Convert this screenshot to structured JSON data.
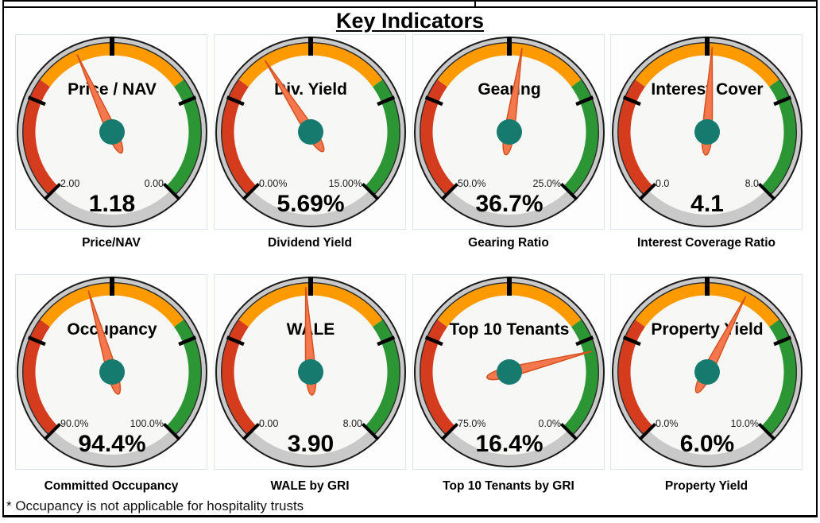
{
  "title": "Key Indicators",
  "footnote": "* Occupancy is not applicable for hospitality trusts",
  "colors": {
    "band_red": "#D53C1E",
    "band_orange": "#FC9A00",
    "band_green": "#2D9634",
    "band_edge": "#2B2B2B",
    "ring_silver": "#C9C9C9",
    "outline": "#1A1A1A",
    "face": "#F7F7F5",
    "needle_fill": "#F4774E",
    "needle_stroke": "#D4521F",
    "hub_teal": "#177A6E",
    "tick": "#000000",
    "scale_label": "#1B1B1B",
    "card_border": "#DBE4F0"
  },
  "gauge_style": {
    "sweep_deg": 270,
    "start_angle_deg": -135,
    "band_fractions": [
      0,
      0.3,
      0.7,
      1
    ]
  },
  "chart_data": [
    {
      "type": "gauge",
      "dial_label": "Price / NAV",
      "caption": "Price/NAV",
      "value": 1.18,
      "value_display": "1.18",
      "scale_start": 2.0,
      "scale_end": 0.0,
      "start_label": "2.00",
      "end_label": "0.00"
    },
    {
      "type": "gauge",
      "dial_label": "Div. Yield",
      "caption": "Dividend Yield",
      "value": 5.69,
      "value_display": "5.69%",
      "scale_start": 0.0,
      "scale_end": 15.0,
      "start_label": "0.00%",
      "end_label": "15.00%"
    },
    {
      "type": "gauge",
      "dial_label": "Gearing",
      "caption": "Gearing Ratio",
      "value": 36.7,
      "value_display": "36.7%",
      "scale_start": 50.0,
      "scale_end": 25.0,
      "start_label": "50.0%",
      "end_label": "25.0%"
    },
    {
      "type": "gauge",
      "dial_label": "Interest Cover",
      "caption": "Interest Coverage Ratio",
      "value": 4.1,
      "value_display": "4.1",
      "scale_start": 0.0,
      "scale_end": 8.0,
      "start_label": "0.0",
      "end_label": "8.0"
    },
    {
      "type": "gauge",
      "dial_label": "Occupancy",
      "caption": "Committed Occupancy",
      "value": 94.4,
      "value_display": "94.4%",
      "scale_start": 90.0,
      "scale_end": 100.0,
      "start_label": "90.0%",
      "end_label": "100.0%"
    },
    {
      "type": "gauge",
      "dial_label": "WALE",
      "caption": "WALE by GRI",
      "value": 3.9,
      "value_display": "3.90",
      "scale_start": 0.0,
      "scale_end": 8.0,
      "start_label": "0.00",
      "end_label": "8.00"
    },
    {
      "type": "gauge",
      "dial_label": "Top 10 Tenants",
      "caption": "Top 10 Tenants by GRI",
      "value": 16.4,
      "value_display": "16.4%",
      "scale_start": 75.0,
      "scale_end": 0.0,
      "start_label": "75.0%",
      "end_label": "0.0%"
    },
    {
      "type": "gauge",
      "dial_label": "Property Yield",
      "caption": "Property Yield",
      "value": 6.0,
      "value_display": "6.0%",
      "scale_start": 0.0,
      "scale_end": 10.0,
      "start_label": "0.0%",
      "end_label": "10.0%"
    }
  ]
}
